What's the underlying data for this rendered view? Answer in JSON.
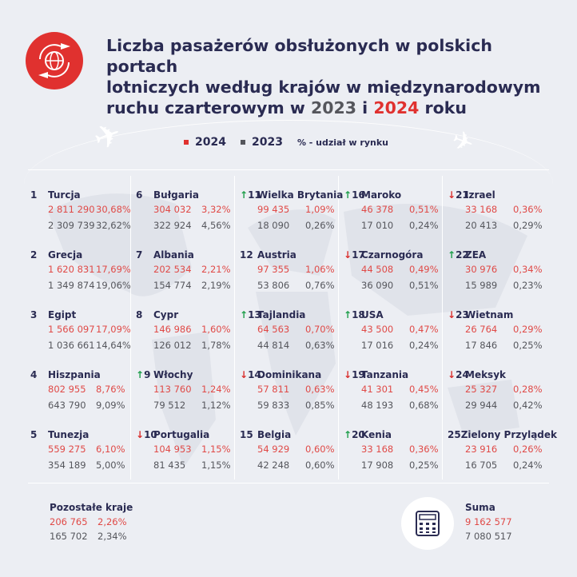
{
  "title": {
    "line1": "Liczba pasażerów obsłużonych w polskich portach",
    "line2": "lotniczych według krajów w międzynarodowym",
    "line3_a": "ruchu czarterowym w ",
    "year_2023": "2023",
    "line3_b": " i ",
    "year_2024": "2024",
    "line3_c": " roku"
  },
  "legend": {
    "label_2024": "2024",
    "label_2023": "2023",
    "note": "% - udział w rynku"
  },
  "colors": {
    "red": "#e0312f",
    "grey": "#55565c",
    "navy": "#2a2b52",
    "up": "#1e9e4a",
    "down": "#d9302e"
  },
  "icons": {
    "logo": "globe-planes-icon",
    "summary": "calculator-icon"
  },
  "countries": [
    {
      "rank": "1",
      "trend": "",
      "name": "Turcja",
      "v2024": "2 811 290",
      "p2024": "30,68%",
      "v2023": "2 309 739",
      "p2023": "32,62%"
    },
    {
      "rank": "2",
      "trend": "",
      "name": "Grecja",
      "v2024": "1 620 831",
      "p2024": "17,69%",
      "v2023": "1 349 874",
      "p2023": "19,06%"
    },
    {
      "rank": "3",
      "trend": "",
      "name": "Egipt",
      "v2024": "1 566 097",
      "p2024": "17,09%",
      "v2023": "1 036 661",
      "p2023": "14,64%"
    },
    {
      "rank": "4",
      "trend": "",
      "name": "Hiszpania",
      "v2024": "802 955",
      "p2024": "8,76%",
      "v2023": "643 790",
      "p2023": "9,09%"
    },
    {
      "rank": "5",
      "trend": "",
      "name": "Tunezja",
      "v2024": "559 275",
      "p2024": "6,10%",
      "v2023": "354 189",
      "p2023": "5,00%"
    },
    {
      "rank": "6",
      "trend": "",
      "name": "Bułgaria",
      "v2024": "304 032",
      "p2024": "3,32%",
      "v2023": "322 924",
      "p2023": "4,56%"
    },
    {
      "rank": "7",
      "trend": "",
      "name": "Albania",
      "v2024": "202 534",
      "p2024": "2,21%",
      "v2023": "154 774",
      "p2023": "2,19%"
    },
    {
      "rank": "8",
      "trend": "",
      "name": "Cypr",
      "v2024": "146 986",
      "p2024": "1,60%",
      "v2023": "126 012",
      "p2023": "1,78%"
    },
    {
      "rank": "9",
      "trend": "up",
      "name": "Włochy",
      "v2024": "113 760",
      "p2024": "1,24%",
      "v2023": "79 512",
      "p2023": "1,12%"
    },
    {
      "rank": "10",
      "trend": "down",
      "name": "Portugalia",
      "v2024": "104 953",
      "p2024": "1,15%",
      "v2023": "81 435",
      "p2023": "1,15%"
    },
    {
      "rank": "11",
      "trend": "up",
      "name": "Wielka Brytania",
      "v2024": "99 435",
      "p2024": "1,09%",
      "v2023": "18 090",
      "p2023": "0,26%"
    },
    {
      "rank": "12",
      "trend": "",
      "name": "Austria",
      "v2024": "97 355",
      "p2024": "1,06%",
      "v2023": "53 806",
      "p2023": "0,76%"
    },
    {
      "rank": "13",
      "trend": "up",
      "name": "Tajlandia",
      "v2024": "64 563",
      "p2024": "0,70%",
      "v2023": "44 814",
      "p2023": "0,63%"
    },
    {
      "rank": "14",
      "trend": "down",
      "name": "Dominikana",
      "v2024": "57 811",
      "p2024": "0,63%",
      "v2023": "59 833",
      "p2023": "0,85%"
    },
    {
      "rank": "15",
      "trend": "",
      "name": "Belgia",
      "v2024": "54 929",
      "p2024": "0,60%",
      "v2023": "42 248",
      "p2023": "0,60%"
    },
    {
      "rank": "16",
      "trend": "up",
      "name": "Maroko",
      "v2024": "46 378",
      "p2024": "0,51%",
      "v2023": "17 010",
      "p2023": "0,24%"
    },
    {
      "rank": "17",
      "trend": "down",
      "name": "Czarnogóra",
      "v2024": "44 508",
      "p2024": "0,49%",
      "v2023": "36 090",
      "p2023": "0,51%"
    },
    {
      "rank": "18",
      "trend": "up",
      "name": "USA",
      "v2024": "43 500",
      "p2024": "0,47%",
      "v2023": "17 016",
      "p2023": "0,24%"
    },
    {
      "rank": "19",
      "trend": "down",
      "name": "Tanzania",
      "v2024": "41 301",
      "p2024": "0,45%",
      "v2023": "48 193",
      "p2023": "0,68%"
    },
    {
      "rank": "20",
      "trend": "up",
      "name": "Kenia",
      "v2024": "33 168",
      "p2024": "0,36%",
      "v2023": "17 908",
      "p2023": "0,25%"
    },
    {
      "rank": "21",
      "trend": "down",
      "name": "Izrael",
      "v2024": "33 168",
      "p2024": "0,36%",
      "v2023": "20 413",
      "p2023": "0,29%"
    },
    {
      "rank": "22",
      "trend": "up",
      "name": "ZEA",
      "v2024": "30 976",
      "p2024": "0,34%",
      "v2023": "15 989",
      "p2023": "0,23%"
    },
    {
      "rank": "23",
      "trend": "down",
      "name": "Wietnam",
      "v2024": "26 764",
      "p2024": "0,29%",
      "v2023": "17 846",
      "p2023": "0,25%"
    },
    {
      "rank": "24",
      "trend": "down",
      "name": "Meksyk",
      "v2024": "25 327",
      "p2024": "0,28%",
      "v2023": "29 944",
      "p2023": "0,42%"
    },
    {
      "rank": "25",
      "trend": "",
      "name": "Zielony Przylądek",
      "v2024": "23 916",
      "p2024": "0,26%",
      "v2023": "16 705",
      "p2023": "0,24%"
    }
  ],
  "others": {
    "name": "Pozostałe kraje",
    "v2024": "206 765",
    "p2024": "2,26%",
    "v2023": "165 702",
    "p2023": "2,34%"
  },
  "total": {
    "name": "Suma",
    "v2024": "9 162 577",
    "v2023": "7 080 517"
  }
}
